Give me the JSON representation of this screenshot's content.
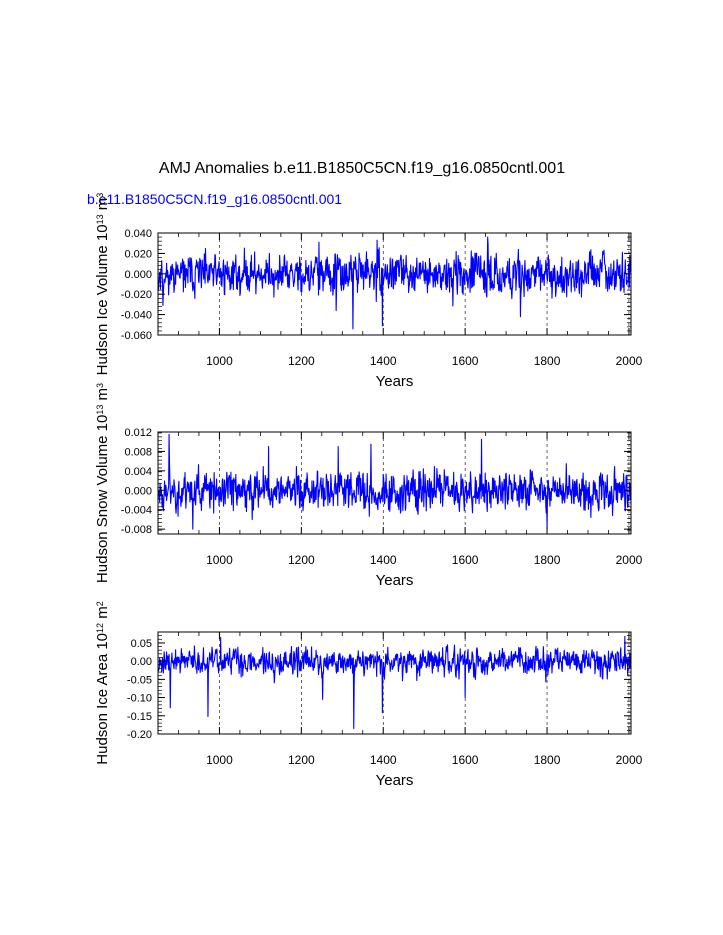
{
  "figure": {
    "title": "AMJ Anomalies b.e11.B1850C5CN.f19_g16.0850cntl.001",
    "subtitle": "b.e11.B1850C5CN.f19_g16.0850cntl.001",
    "series_color": "#0000ff"
  },
  "chart_data": [
    {
      "type": "line",
      "ylabel": "Hudson Ice Volume 10",
      "ylabel_exp": "13",
      "ylabel_unit": " m",
      "ylabel_unit_exp": "3",
      "xlabel": "Years",
      "xlim": [
        850,
        2005
      ],
      "ylim": [
        -0.06,
        0.04
      ],
      "x_ticks": [
        1000,
        1200,
        1400,
        1600,
        1800,
        2000
      ],
      "x_tick_labels": [
        "1000",
        "1200",
        "1400",
        "1600",
        "1800",
        "2000"
      ],
      "y_ticks": [
        -0.06,
        -0.04,
        -0.02,
        0.0,
        0.02,
        0.04
      ],
      "y_tick_labels": [
        "-0.060",
        "-0.040",
        "-0.020",
        "0.000",
        "0.020",
        "0.040"
      ],
      "grid": "vertical dashed at major x ticks",
      "noise": {
        "seed": 11,
        "amplitude": 0.0115,
        "min": -0.054,
        "max": 0.036
      },
      "extremes": [
        [
          862,
          -0.031
        ],
        [
          1326,
          -0.054
        ],
        [
          1398,
          -0.051
        ],
        [
          1285,
          -0.036
        ],
        [
          1735,
          -0.042
        ],
        [
          1655,
          0.036
        ],
        [
          1385,
          0.033
        ],
        [
          1243,
          0.031
        ]
      ]
    },
    {
      "type": "line",
      "ylabel": "Hudson Snow Volume 10",
      "ylabel_exp": "13",
      "ylabel_unit": " m",
      "ylabel_unit_exp": "3",
      "xlabel": "Years",
      "xlim": [
        850,
        2005
      ],
      "ylim": [
        -0.009,
        0.012
      ],
      "x_ticks": [
        1000,
        1200,
        1400,
        1600,
        1800,
        2000
      ],
      "x_tick_labels": [
        "1000",
        "1200",
        "1400",
        "1600",
        "1800",
        "2000"
      ],
      "y_ticks": [
        -0.008,
        -0.004,
        0.0,
        0.004,
        0.008,
        0.012
      ],
      "y_tick_labels": [
        "-0.008",
        "-0.004",
        "0.000",
        "0.004",
        "0.008",
        "0.012"
      ],
      "grid": "vertical dashed at major x ticks",
      "noise": {
        "seed": 23,
        "amplitude": 0.0024,
        "min": -0.008,
        "max": 0.0115
      },
      "extremes": [
        [
          877,
          0.0115
        ],
        [
          1640,
          0.0105
        ],
        [
          1370,
          0.0095
        ],
        [
          1120,
          0.009
        ],
        [
          1290,
          0.009
        ],
        [
          935,
          -0.008
        ],
        [
          1800,
          -0.008
        ],
        [
          1080,
          -0.006
        ]
      ]
    },
    {
      "type": "line",
      "ylabel": "Hudson Ice Area 10",
      "ylabel_exp": "12",
      "ylabel_unit": " m",
      "ylabel_unit_exp": "2",
      "xlabel": "Years",
      "xlim": [
        850,
        2005
      ],
      "ylim": [
        -0.2,
        0.08
      ],
      "x_ticks": [
        1000,
        1200,
        1400,
        1600,
        1800,
        2000
      ],
      "x_tick_labels": [
        "1000",
        "1200",
        "1400",
        "1600",
        "1800",
        "2000"
      ],
      "y_ticks": [
        -0.2,
        -0.15,
        -0.1,
        -0.05,
        0.0,
        0.05
      ],
      "y_tick_labels": [
        "-0.20",
        "-0.15",
        "-0.10",
        "-0.05",
        "0.00",
        "0.05"
      ],
      "grid": "vertical dashed at major x ticks",
      "noise": {
        "seed": 37,
        "amplitude": 0.022,
        "min": -0.185,
        "max": 0.068
      },
      "extremes": [
        [
          1328,
          -0.185
        ],
        [
          972,
          -0.152
        ],
        [
          1398,
          -0.142
        ],
        [
          880,
          -0.128
        ],
        [
          1252,
          -0.105
        ],
        [
          1600,
          -0.1
        ],
        [
          1003,
          0.065
        ],
        [
          1990,
          0.068
        ]
      ]
    }
  ]
}
